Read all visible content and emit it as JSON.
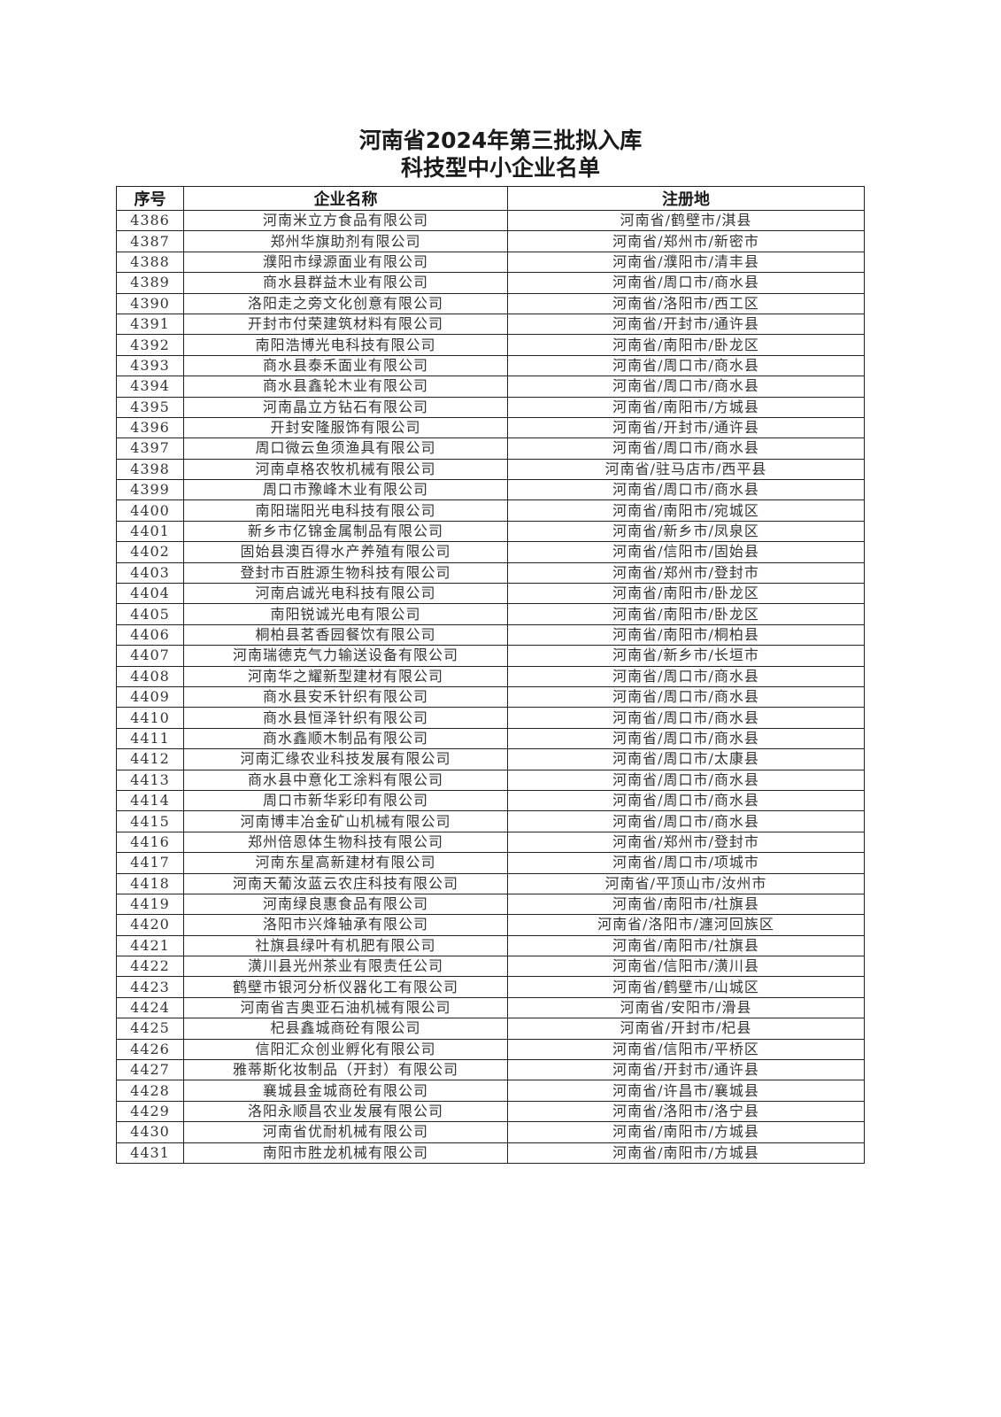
{
  "title": {
    "line1": "河南省2024年第三批拟入库",
    "line2": "科技型中小企业名单"
  },
  "table": {
    "headers": [
      "序号",
      "企业名称",
      "注册地"
    ],
    "rows": [
      [
        "4386",
        "河南米立方食品有限公司",
        "河南省/鹤壁市/淇县"
      ],
      [
        "4387",
        "郑州华旗助剂有限公司",
        "河南省/郑州市/新密市"
      ],
      [
        "4388",
        "濮阳市绿源面业有限公司",
        "河南省/濮阳市/清丰县"
      ],
      [
        "4389",
        "商水县群益木业有限公司",
        "河南省/周口市/商水县"
      ],
      [
        "4390",
        "洛阳走之旁文化创意有限公司",
        "河南省/洛阳市/西工区"
      ],
      [
        "4391",
        "开封市付荣建筑材料有限公司",
        "河南省/开封市/通许县"
      ],
      [
        "4392",
        "南阳浩博光电科技有限公司",
        "河南省/南阳市/卧龙区"
      ],
      [
        "4393",
        "商水县泰禾面业有限公司",
        "河南省/周口市/商水县"
      ],
      [
        "4394",
        "商水县鑫轮木业有限公司",
        "河南省/周口市/商水县"
      ],
      [
        "4395",
        "河南晶立方钻石有限公司",
        "河南省/南阳市/方城县"
      ],
      [
        "4396",
        "开封安隆服饰有限公司",
        "河南省/开封市/通许县"
      ],
      [
        "4397",
        "周口微云鱼须渔具有限公司",
        "河南省/周口市/商水县"
      ],
      [
        "4398",
        "河南卓格农牧机械有限公司",
        "河南省/驻马店市/西平县"
      ],
      [
        "4399",
        "周口市豫峰木业有限公司",
        "河南省/周口市/商水县"
      ],
      [
        "4400",
        "南阳瑞阳光电科技有限公司",
        "河南省/南阳市/宛城区"
      ],
      [
        "4401",
        "新乡市亿锦金属制品有限公司",
        "河南省/新乡市/凤泉区"
      ],
      [
        "4402",
        "固始县澳百得水产养殖有限公司",
        "河南省/信阳市/固始县"
      ],
      [
        "4403",
        "登封市百胜源生物科技有限公司",
        "河南省/郑州市/登封市"
      ],
      [
        "4404",
        "河南启诚光电科技有限公司",
        "河南省/南阳市/卧龙区"
      ],
      [
        "4405",
        "南阳锐诚光电有限公司",
        "河南省/南阳市/卧龙区"
      ],
      [
        "4406",
        "桐柏县茗香园餐饮有限公司",
        "河南省/南阳市/桐柏县"
      ],
      [
        "4407",
        "河南瑞德克气力输送设备有限公司",
        "河南省/新乡市/长垣市"
      ],
      [
        "4408",
        "河南华之耀新型建材有限公司",
        "河南省/周口市/商水县"
      ],
      [
        "4409",
        "商水县安禾针织有限公司",
        "河南省/周口市/商水县"
      ],
      [
        "4410",
        "商水县恒泽针织有限公司",
        "河南省/周口市/商水县"
      ],
      [
        "4411",
        "商水鑫顺木制品有限公司",
        "河南省/周口市/商水县"
      ],
      [
        "4412",
        "河南汇缘农业科技发展有限公司",
        "河南省/周口市/太康县"
      ],
      [
        "4413",
        "商水县中意化工涂料有限公司",
        "河南省/周口市/商水县"
      ],
      [
        "4414",
        "周口市新华彩印有限公司",
        "河南省/周口市/商水县"
      ],
      [
        "4415",
        "河南博丰冶金矿山机械有限公司",
        "河南省/周口市/商水县"
      ],
      [
        "4416",
        "郑州倍恩体生物科技有限公司",
        "河南省/郑州市/登封市"
      ],
      [
        "4417",
        "河南东星高新建材有限公司",
        "河南省/周口市/项城市"
      ],
      [
        "4418",
        "河南天葡汝蓝云农庄科技有限公司",
        "河南省/平顶山市/汝州市"
      ],
      [
        "4419",
        "河南绿良惠食品有限公司",
        "河南省/南阳市/社旗县"
      ],
      [
        "4420",
        "洛阳市兴烽轴承有限公司",
        "河南省/洛阳市/瀍河回族区"
      ],
      [
        "4421",
        "社旗县绿叶有机肥有限公司",
        "河南省/南阳市/社旗县"
      ],
      [
        "4422",
        "潢川县光州茶业有限责任公司",
        "河南省/信阳市/潢川县"
      ],
      [
        "4423",
        "鹤壁市银河分析仪器化工有限公司",
        "河南省/鹤壁市/山城区"
      ],
      [
        "4424",
        "河南省吉奥亚石油机械有限公司",
        "河南省/安阳市/滑县"
      ],
      [
        "4425",
        "杞县鑫城商砼有限公司",
        "河南省/开封市/杞县"
      ],
      [
        "4426",
        "信阳汇众创业孵化有限公司",
        "河南省/信阳市/平桥区"
      ],
      [
        "4427",
        "雅蒂斯化妆制品（开封）有限公司",
        "河南省/开封市/通许县"
      ],
      [
        "4428",
        "襄城县金城商砼有限公司",
        "河南省/许昌市/襄城县"
      ],
      [
        "4429",
        "洛阳永顺昌农业发展有限公司",
        "河南省/洛阳市/洛宁县"
      ],
      [
        "4430",
        "河南省优耐机械有限公司",
        "河南省/南阳市/方城县"
      ],
      [
        "4431",
        "南阳市胜龙机械有限公司",
        "河南省/南阳市/方城县"
      ]
    ]
  }
}
